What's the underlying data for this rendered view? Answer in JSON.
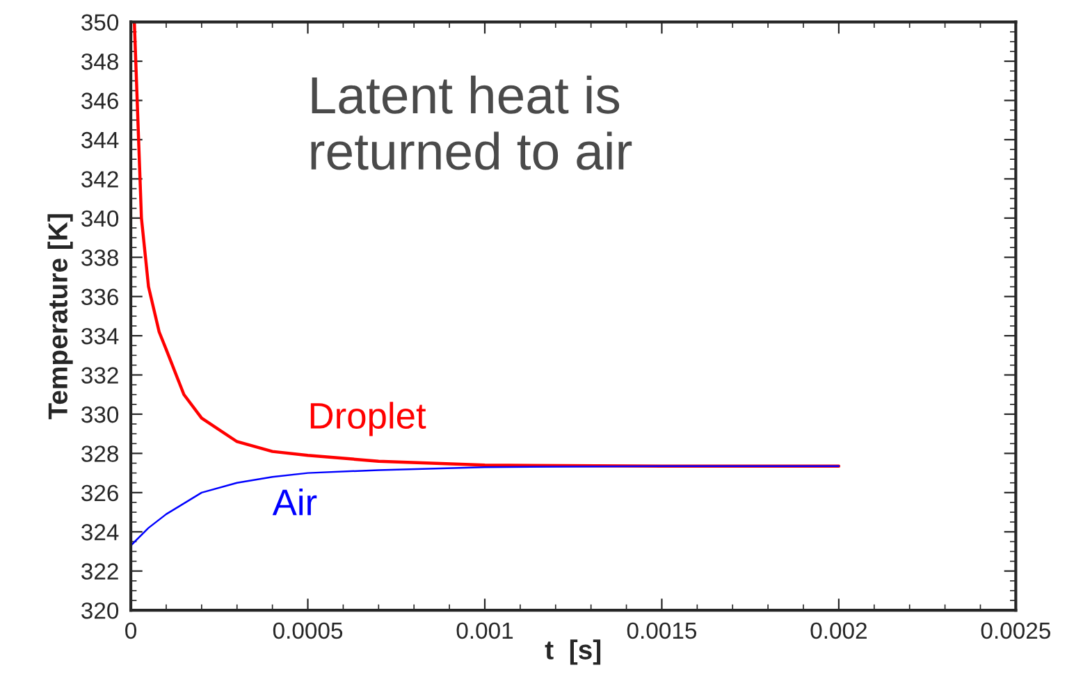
{
  "chart_data": {
    "type": "line",
    "xlabel": "t  [s]",
    "ylabel": "Temperature [K]",
    "annotations": [
      "Latent heat is\nreturned to air"
    ],
    "xlim": [
      0,
      0.0025
    ],
    "xticks": [
      0,
      0.0005,
      0.001,
      0.0015,
      0.002,
      0.0025
    ],
    "ylim": [
      320,
      350
    ],
    "yticks": [
      320,
      322,
      324,
      326,
      328,
      330,
      332,
      334,
      336,
      338,
      340,
      342,
      344,
      346,
      348,
      350
    ],
    "grid": false,
    "legend": false,
    "marker": "none",
    "line_style": "solid",
    "series": [
      {
        "name": "Droplet",
        "color": "#ff0000",
        "x": [
          1e-05,
          3e-05,
          5e-05,
          8e-05,
          0.0001,
          0.00015,
          0.0002,
          0.0003,
          0.0004,
          0.0005,
          0.0007,
          0.001,
          0.0015,
          0.002
        ],
        "values": [
          350,
          340,
          336.5,
          334.2,
          333.3,
          331,
          329.8,
          328.6,
          328.1,
          327.9,
          327.6,
          327.4,
          327.35,
          327.35
        ]
      },
      {
        "name": "Air",
        "color": "#0000ff",
        "x": [
          0,
          5e-05,
          0.0001,
          0.0002,
          0.0003,
          0.0004,
          0.0005,
          0.0007,
          0.001,
          0.0015,
          0.002
        ],
        "values": [
          323.3,
          324.2,
          324.9,
          326.0,
          326.5,
          326.8,
          327.0,
          327.15,
          327.3,
          327.35,
          327.35
        ]
      }
    ]
  }
}
